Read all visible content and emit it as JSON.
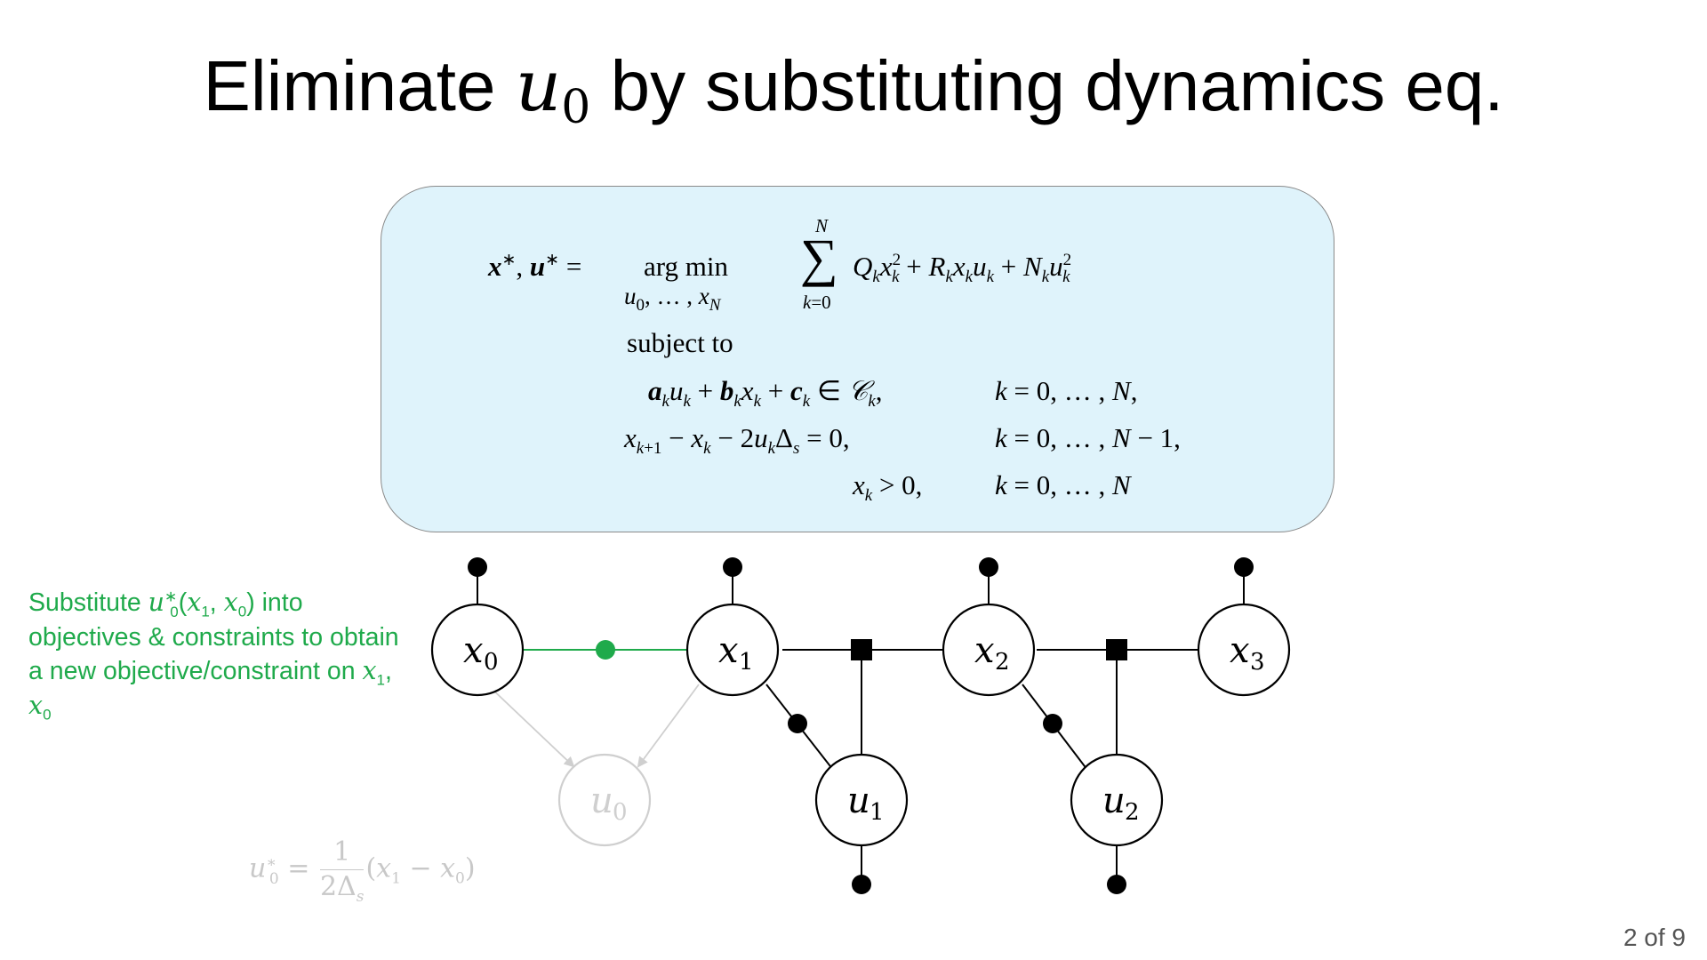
{
  "title": {
    "before": "Eliminate ",
    "var": "u",
    "sub": "0",
    "after": " by substituting dynamics eq."
  },
  "optimization": {
    "lhs": "x*, u* =",
    "argmin": "arg min",
    "argmin_under": "u0, …, xN",
    "sum_top": "N",
    "sum_bottom": "k=0",
    "objective": "Qk xk² + Rk xk uk + Nk uk²",
    "subject_to": "subject to",
    "constraints": [
      {
        "expr": "ak uk + bk xk + ck ∈ 𝒞k,",
        "range": "k = 0, … , N,"
      },
      {
        "expr": "xk+1 − xk − 2uk Δs = 0,",
        "range": "k = 0, … , N − 1,"
      },
      {
        "expr": "xk > 0,",
        "range": "k = 0, … , N"
      }
    ]
  },
  "note": {
    "text_1": "Substitute ",
    "math": "u0*(x1, x0)",
    "text_2": " into objectives & constraints to obtain a new objective/constraint on ",
    "math_2": "x1, x0"
  },
  "u0_solution": "u0* = 1/(2Δs) (x1 − x0)",
  "graph": {
    "nodes": [
      {
        "id": "x0",
        "var": "x",
        "sub": "0",
        "status": "active"
      },
      {
        "id": "x1",
        "var": "x",
        "sub": "1",
        "status": "active"
      },
      {
        "id": "x2",
        "var": "x",
        "sub": "2",
        "status": "active"
      },
      {
        "id": "x3",
        "var": "x",
        "sub": "3",
        "status": "active"
      },
      {
        "id": "u0",
        "var": "u",
        "sub": "0",
        "status": "eliminated"
      },
      {
        "id": "u1",
        "var": "u",
        "sub": "1",
        "status": "active"
      },
      {
        "id": "u2",
        "var": "u",
        "sub": "2",
        "status": "active"
      }
    ],
    "colors": {
      "active": "#000000",
      "eliminated": "#cfcfcf",
      "substituted": "#1faa4b",
      "box_fill": "#dff3fb"
    }
  },
  "page": "2 of 9"
}
